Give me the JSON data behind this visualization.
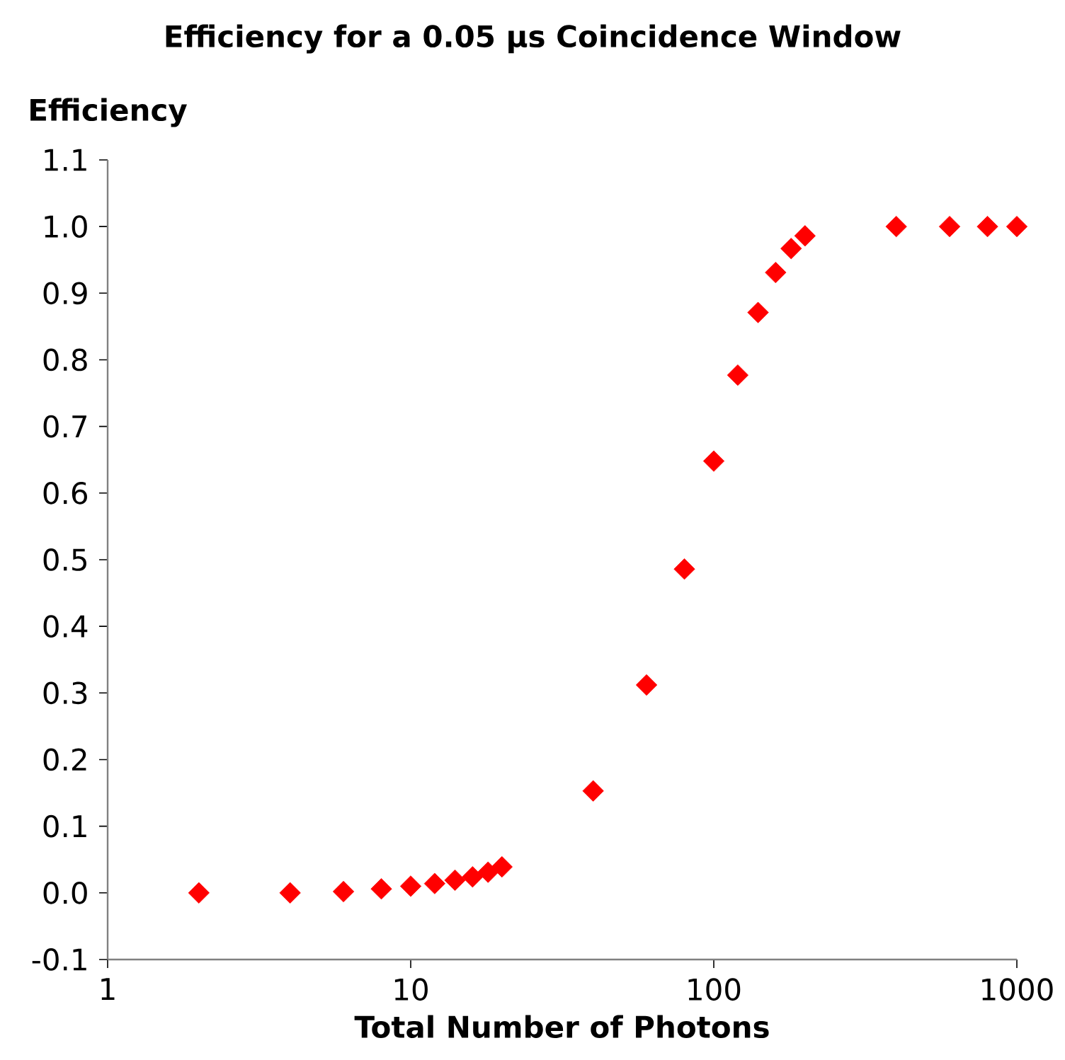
{
  "chart_data": {
    "type": "scatter",
    "title": "Efficiency for a 0.05 μs Coincidence Window",
    "xlabel": "Total Number of Photons",
    "ylabel": "Efficiency",
    "log": "x",
    "marker": "diamond",
    "grid": false,
    "xlim": [
      1,
      1000
    ],
    "xticks": [
      1,
      10,
      100,
      1000
    ],
    "ylim": [
      -0.1,
      1.1
    ],
    "yticks": [
      {
        "value": -0.1,
        "label": "-0.1"
      },
      {
        "value": 0,
        "label": "0.0"
      },
      0.1,
      0.2,
      0.3,
      0.4,
      0.5,
      0.6,
      0.7,
      0.8,
      0.9,
      {
        "value": 1,
        "label": "1.0"
      },
      1.1
    ],
    "series": [
      {
        "color": "#ff0000",
        "x": [
          2,
          4,
          6,
          8,
          10,
          12,
          14,
          16,
          18,
          20,
          40,
          60,
          80,
          100,
          120,
          140,
          160,
          180,
          200,
          400,
          600,
          800,
          1000
        ],
        "values": [
          0.0,
          0.0,
          0.002,
          0.006,
          0.01,
          0.014,
          0.019,
          0.024,
          0.031,
          0.039,
          0.153,
          0.312,
          0.486,
          0.648,
          0.777,
          0.871,
          0.931,
          0.967,
          0.986,
          1.0,
          1.0,
          1.0,
          1.0
        ]
      }
    ]
  }
}
